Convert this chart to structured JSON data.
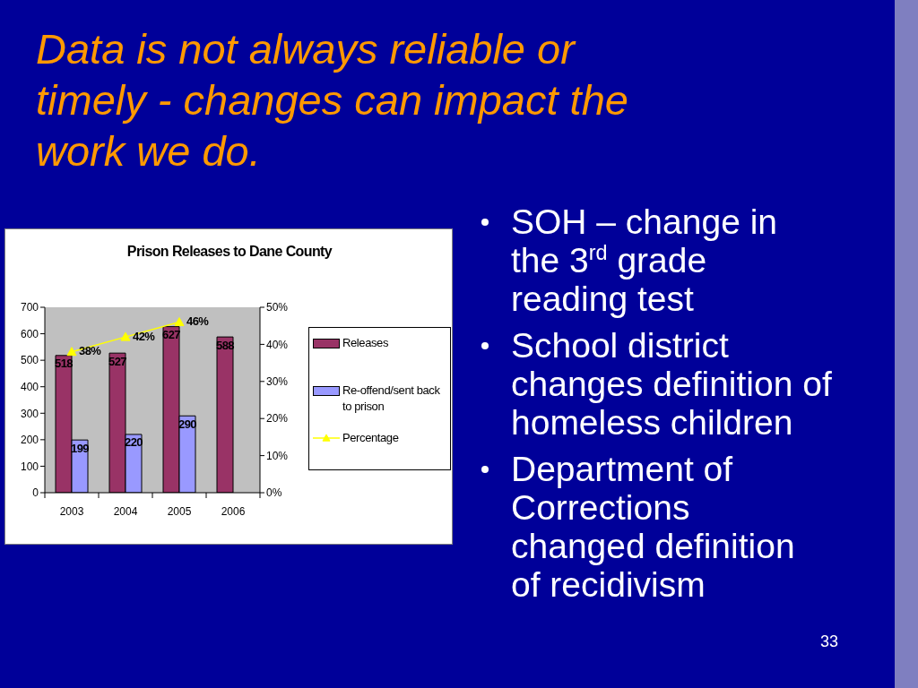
{
  "chart_data": {
    "type": "bar",
    "title": "Prison Releases to Dane County",
    "categories": [
      "2003",
      "2004",
      "2005",
      "2006"
    ],
    "series": [
      {
        "name": "Releases",
        "color": "#993366",
        "values": [
          518,
          527,
          627,
          588
        ],
        "value_labels": [
          "518",
          "527",
          "627",
          "588"
        ]
      },
      {
        "name": "Re-offend/sent back to prison",
        "color": "#9999ff",
        "values": [
          199,
          220,
          290,
          null
        ],
        "value_labels": [
          "199",
          "220",
          "290",
          null
        ]
      },
      {
        "name": "Percentage",
        "type": "line",
        "axis": "y2",
        "color": "#ffff00",
        "marker": "triangle",
        "values": [
          38,
          42,
          46,
          null
        ],
        "value_labels": [
          "38%",
          "42%",
          "46%",
          null
        ]
      }
    ],
    "ylim": [
      0,
      700
    ],
    "yticks": [
      0,
      100,
      200,
      300,
      400,
      500,
      600,
      700
    ],
    "y2lim": [
      0,
      50
    ],
    "y2ticks": [
      {
        "value": 0,
        "label": "0%"
      },
      {
        "value": 10,
        "label": "10%"
      },
      {
        "value": 20,
        "label": "20%"
      },
      {
        "value": 30,
        "label": "30%"
      },
      {
        "value": 40,
        "label": "40%"
      },
      {
        "value": 50,
        "label": "50%"
      }
    ],
    "legend": "right",
    "annotations": [
      "Data is not always reliable or timely - changes can impact the work we do.",
      "SOH – change in the 3$^{rd}$ grade reading test",
      "School district changes definition of homeless children",
      "Department of Corrections changed definition of recidivism",
      "33"
    ]
  }
}
